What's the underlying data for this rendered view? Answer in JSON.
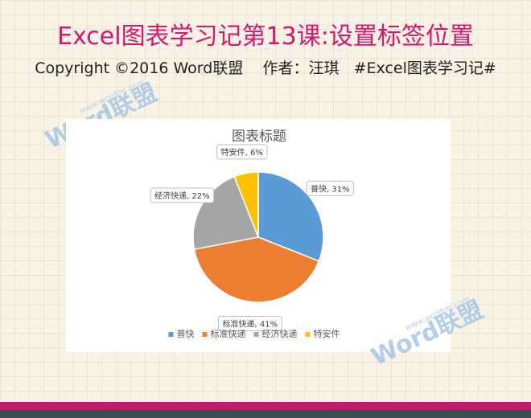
{
  "header": {
    "title": "Excel图表学习记第13课:设置标签位置",
    "subtitle": "Copyright ©2016 Word联盟    作者：汪琪   #Excel图表学习记#"
  },
  "watermark": {
    "text": "Word联盟",
    "url": "www.wordlm.com"
  },
  "chart_data": {
    "type": "pie",
    "title": "图表标题",
    "categories": [
      "普快",
      "标准快递",
      "经济快递",
      "特安件"
    ],
    "values": [
      31,
      41,
      22,
      6
    ],
    "value_labels": [
      "普快, 31%",
      "标准快递, 41%",
      "经济快递, 22%",
      "特安件, 6%"
    ],
    "colors": [
      "#5b9bd5",
      "#ed7d31",
      "#a5a5a5",
      "#ffc000"
    ],
    "legend": "bottom"
  }
}
